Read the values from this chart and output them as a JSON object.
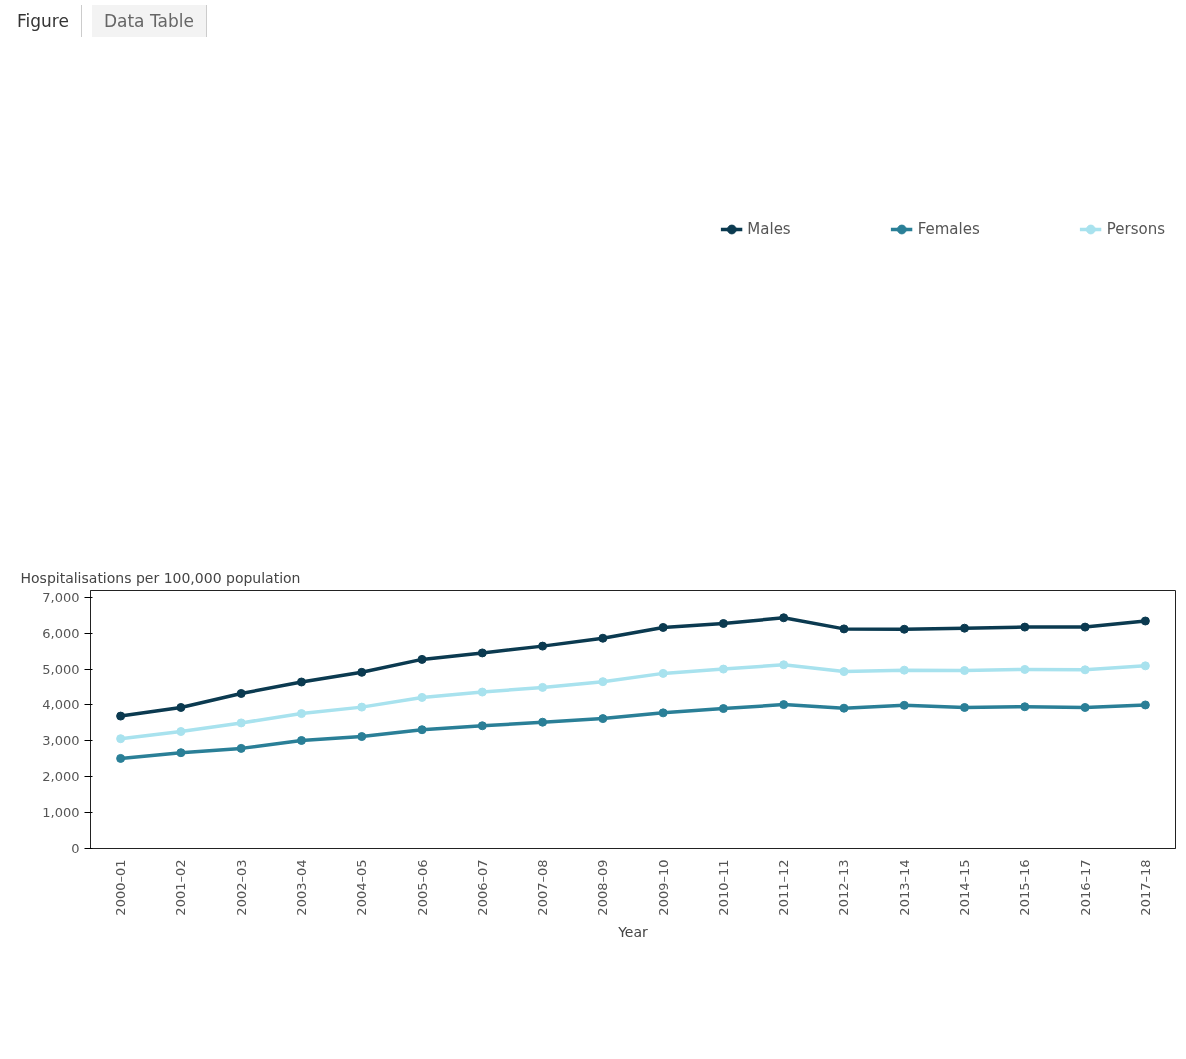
{
  "chart_data": {
    "type": "line",
    "xlabel": "Year",
    "ylabel": "Hospitalisations per 100,000 population",
    "annotations": [
      "Figure",
      "Data Table"
    ],
    "categories": [
      "2000–01",
      "2001–02",
      "2002–03",
      "2003–04",
      "2004–05",
      "2005–06",
      "2006–07",
      "2007–08",
      "2008–09",
      "2009–10",
      "2010–11",
      "2011–12",
      "2012–13",
      "2013–14",
      "2014–15",
      "2015–16",
      "2016–17",
      "2017–18"
    ],
    "series": [
      {
        "name": "Males",
        "color": "#0b3a50",
        "values": [
          3690,
          3930,
          4320,
          4640,
          4910,
          5270,
          5450,
          5640,
          5860,
          6160,
          6270,
          6430,
          6120,
          6110,
          6140,
          6170,
          6170,
          6340
        ]
      },
      {
        "name": "Females",
        "color": "#2a7f97",
        "values": [
          2510,
          2670,
          2790,
          3010,
          3120,
          3310,
          3420,
          3520,
          3620,
          3780,
          3900,
          4010,
          3910,
          3990,
          3930,
          3950,
          3930,
          4000
        ]
      },
      {
        "name": "Persons",
        "color": "#a8e2ee",
        "values": [
          3060,
          3260,
          3500,
          3760,
          3940,
          4210,
          4360,
          4490,
          4650,
          4880,
          5000,
          5120,
          4930,
          4970,
          4960,
          4990,
          4980,
          5090
        ]
      }
    ],
    "ylim": [
      0,
      7190
    ],
    "yticks": [
      0,
      {
        "value": 1000,
        "label": "1,000"
      },
      {
        "value": 2000,
        "label": "2,000"
      },
      {
        "value": 3000,
        "label": "3,000"
      },
      {
        "value": 4000,
        "label": "4,000"
      },
      {
        "value": 5000,
        "label": "5,000"
      },
      {
        "value": 6000,
        "label": "6,000"
      },
      {
        "value": 7000,
        "label": "7,000"
      }
    ],
    "grid": false,
    "legend": "top",
    "marker": "circle",
    "line_style": "solid"
  }
}
